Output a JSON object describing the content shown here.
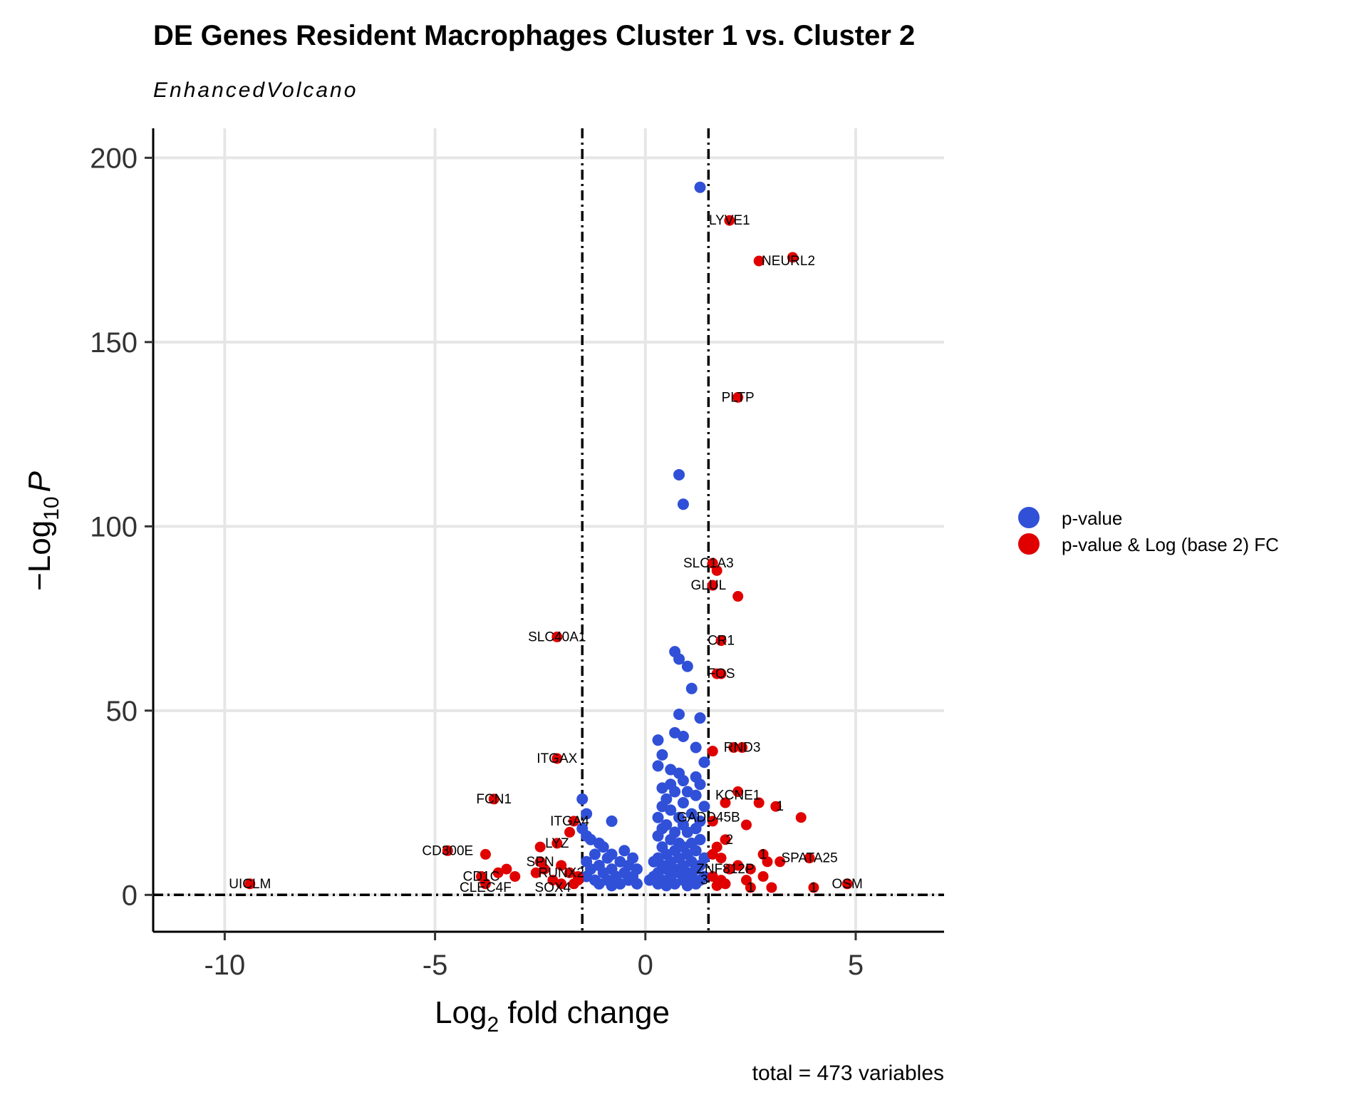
{
  "chart_data": {
    "type": "scatter",
    "title": "DE Genes Resident Macrophages Cluster 1 vs. Cluster 2",
    "subtitle": "EnhancedVolcano",
    "xlabel_main": "Log",
    "xlabel_sub": "2",
    "xlabel_rest": " fold change",
    "ylabel_prefix": "−Log",
    "ylabel_sub": "10",
    "ylabel_italic": "P",
    "caption": "total = 473 variables",
    "xlim": [
      -11.7,
      7.1
    ],
    "ylim": [
      -10,
      208
    ],
    "x_ticks": [
      -10,
      -5,
      0,
      5
    ],
    "x_tick_labels": [
      "-10",
      "-5",
      "0",
      "5"
    ],
    "y_ticks": [
      0,
      50,
      100,
      150,
      200
    ],
    "y_tick_labels": [
      "0",
      "50",
      "100",
      "150",
      "200"
    ],
    "fc_cutoff": 1.5,
    "p_cutoff_line": 0,
    "grid": true,
    "legend_position": "right",
    "colors": {
      "pvalue": "#3050d8",
      "fc": "#e00000",
      "grid": "#e6e6e6",
      "axis": "#000000"
    },
    "legend": [
      {
        "label": "p-value",
        "color": "#3050d8"
      },
      {
        "label": "p-value & Log (base 2) FC",
        "color": "#e00000"
      }
    ],
    "series": [
      {
        "name": "p-value",
        "color": "#3050d8",
        "points": [
          [
            1.3,
            192
          ],
          [
            0.8,
            114
          ],
          [
            0.9,
            106
          ],
          [
            0.7,
            66
          ],
          [
            0.8,
            64
          ],
          [
            1.0,
            62
          ],
          [
            1.1,
            56
          ],
          [
            0.8,
            49
          ],
          [
            1.3,
            48
          ],
          [
            0.7,
            44
          ],
          [
            0.9,
            43
          ],
          [
            0.3,
            42
          ],
          [
            1.2,
            40
          ],
          [
            0.4,
            38
          ],
          [
            1.4,
            36
          ],
          [
            0.3,
            35
          ],
          [
            0.6,
            34
          ],
          [
            0.8,
            33
          ],
          [
            1.2,
            32
          ],
          [
            0.9,
            31
          ],
          [
            0.6,
            30
          ],
          [
            1.3,
            30
          ],
          [
            0.4,
            29
          ],
          [
            0.7,
            28
          ],
          [
            1.0,
            28
          ],
          [
            1.2,
            27
          ],
          [
            -1.5,
            26
          ],
          [
            0.5,
            26
          ],
          [
            0.9,
            25
          ],
          [
            0.4,
            24
          ],
          [
            1.4,
            24
          ],
          [
            0.6,
            23
          ],
          [
            -1.4,
            22
          ],
          [
            1.1,
            22
          ],
          [
            0.3,
            21
          ],
          [
            0.8,
            21
          ],
          [
            -0.8,
            20
          ],
          [
            1.3,
            20
          ],
          [
            0.5,
            19
          ],
          [
            0.9,
            19
          ],
          [
            -1.5,
            18
          ],
          [
            0.4,
            18
          ],
          [
            1.2,
            18
          ],
          [
            0.7,
            17
          ],
          [
            1.0,
            17
          ],
          [
            -1.4,
            16
          ],
          [
            0.3,
            16
          ],
          [
            0.6,
            15
          ],
          [
            1.3,
            15
          ],
          [
            -1.3,
            15
          ],
          [
            -1.1,
            14
          ],
          [
            0.8,
            14
          ],
          [
            1.1,
            14
          ],
          [
            -1.0,
            13
          ],
          [
            0.4,
            13
          ],
          [
            0.9,
            13
          ],
          [
            -0.5,
            12
          ],
          [
            0.7,
            12
          ],
          [
            1.2,
            12
          ],
          [
            -0.8,
            11
          ],
          [
            -1.2,
            11
          ],
          [
            0.5,
            11
          ],
          [
            1.0,
            11
          ],
          [
            -0.3,
            10
          ],
          [
            -0.9,
            10
          ],
          [
            0.3,
            10
          ],
          [
            0.8,
            10
          ],
          [
            1.4,
            10
          ],
          [
            -1.4,
            9
          ],
          [
            -0.6,
            9
          ],
          [
            0.2,
            9
          ],
          [
            0.6,
            9
          ],
          [
            1.1,
            9
          ],
          [
            -1.1,
            8
          ],
          [
            -0.4,
            8
          ],
          [
            0.4,
            8
          ],
          [
            0.9,
            8
          ],
          [
            1.3,
            8
          ],
          [
            -1.3,
            7
          ],
          [
            -0.8,
            7
          ],
          [
            -0.2,
            7
          ],
          [
            0.5,
            7
          ],
          [
            0.7,
            7
          ],
          [
            1.2,
            7
          ],
          [
            -1.0,
            6
          ],
          [
            -0.5,
            6
          ],
          [
            0.3,
            6
          ],
          [
            0.8,
            6
          ],
          [
            1.0,
            6
          ],
          [
            -1.4,
            5
          ],
          [
            -0.7,
            5
          ],
          [
            -0.3,
            5
          ],
          [
            0.2,
            5
          ],
          [
            0.6,
            5
          ],
          [
            1.1,
            5
          ],
          [
            1.4,
            5
          ],
          [
            -1.2,
            4
          ],
          [
            -0.9,
            4
          ],
          [
            -0.4,
            4
          ],
          [
            0.1,
            4
          ],
          [
            0.4,
            4
          ],
          [
            0.9,
            4
          ],
          [
            1.3,
            4
          ],
          [
            -1.1,
            3
          ],
          [
            -0.6,
            3
          ],
          [
            -0.2,
            3
          ],
          [
            0.3,
            3
          ],
          [
            0.7,
            3
          ],
          [
            1.2,
            3
          ],
          [
            -0.8,
            2.5
          ],
          [
            0.5,
            2.5
          ],
          [
            1.0,
            2.5
          ]
        ]
      },
      {
        "name": "p-value & Log (base 2) FC",
        "color": "#e00000",
        "points": [
          [
            2.0,
            183
          ],
          [
            2.7,
            172
          ],
          [
            3.5,
            173
          ],
          [
            2.2,
            135
          ],
          [
            1.7,
            88
          ],
          [
            2.2,
            81
          ],
          [
            1.6,
            90
          ],
          [
            1.6,
            84
          ],
          [
            1.8,
            69
          ],
          [
            1.7,
            60
          ],
          [
            1.8,
            60
          ],
          [
            1.6,
            39
          ],
          [
            2.1,
            40
          ],
          [
            2.3,
            40
          ],
          [
            2.2,
            28
          ],
          [
            1.9,
            25
          ],
          [
            2.7,
            25
          ],
          [
            3.1,
            24
          ],
          [
            3.7,
            21
          ],
          [
            1.6,
            20
          ],
          [
            2.4,
            19
          ],
          [
            1.9,
            15
          ],
          [
            1.7,
            13
          ],
          [
            1.6,
            11
          ],
          [
            1.8,
            10
          ],
          [
            2.8,
            11
          ],
          [
            3.2,
            9
          ],
          [
            2.9,
            9
          ],
          [
            3.9,
            10
          ],
          [
            2.2,
            8
          ],
          [
            2.5,
            7
          ],
          [
            2.0,
            7
          ],
          [
            1.6,
            5
          ],
          [
            1.8,
            4
          ],
          [
            2.4,
            4
          ],
          [
            2.8,
            5
          ],
          [
            1.9,
            3
          ],
          [
            2.5,
            2
          ],
          [
            3.0,
            2
          ],
          [
            4.0,
            2
          ],
          [
            4.8,
            3
          ],
          [
            1.7,
            2.5
          ],
          [
            -2.1,
            70
          ],
          [
            -2.1,
            37
          ],
          [
            -3.6,
            26
          ],
          [
            -1.7,
            20
          ],
          [
            -1.8,
            17
          ],
          [
            -2.1,
            14
          ],
          [
            -2.5,
            13
          ],
          [
            -4.7,
            12
          ],
          [
            -3.8,
            11
          ],
          [
            -2.5,
            9
          ],
          [
            -2.0,
            8
          ],
          [
            -2.4,
            7
          ],
          [
            -3.5,
            6
          ],
          [
            -3.9,
            5
          ],
          [
            -3.1,
            5
          ],
          [
            -1.8,
            6
          ],
          [
            -1.6,
            5
          ],
          [
            -2.2,
            4
          ],
          [
            -3.8,
            3
          ],
          [
            -2.0,
            3
          ],
          [
            -1.7,
            3
          ],
          [
            -9.4,
            3
          ],
          [
            -2.6,
            6
          ],
          [
            -3.3,
            7
          ],
          [
            -1.6,
            4
          ]
        ]
      }
    ],
    "labels": [
      {
        "text": "LYVE1",
        "x": 2.0,
        "y": 183
      },
      {
        "text": "NEURL2",
        "x": 3.4,
        "y": 172
      },
      {
        "text": "PLTP",
        "x": 2.2,
        "y": 135
      },
      {
        "text": "SLC1A3",
        "x": 1.5,
        "y": 90
      },
      {
        "text": "GLUL",
        "x": 1.5,
        "y": 84
      },
      {
        "text": "CR1",
        "x": 1.8,
        "y": 69
      },
      {
        "text": "FOS",
        "x": 1.8,
        "y": 60
      },
      {
        "text": "RND3",
        "x": 2.3,
        "y": 40
      },
      {
        "text": "KCNE1",
        "x": 2.2,
        "y": 27
      },
      {
        "text": "GADD45B",
        "x": 1.5,
        "y": 21
      },
      {
        "text": "SPATA25",
        "x": 3.9,
        "y": 10
      },
      {
        "text": "ZNF812P",
        "x": 1.9,
        "y": 7
      },
      {
        "text": "OSM",
        "x": 4.8,
        "y": 3
      },
      {
        "text": "SLC40A1",
        "x": -2.1,
        "y": 70
      },
      {
        "text": "ITGAX",
        "x": -2.1,
        "y": 37
      },
      {
        "text": "FCN1",
        "x": -3.6,
        "y": 26
      },
      {
        "text": "ITGA4",
        "x": -1.8,
        "y": 20
      },
      {
        "text": "LYZ",
        "x": -2.1,
        "y": 14
      },
      {
        "text": "CD300E",
        "x": -4.7,
        "y": 12
      },
      {
        "text": "SPN",
        "x": -2.5,
        "y": 9
      },
      {
        "text": "CD1C",
        "x": -3.9,
        "y": 5
      },
      {
        "text": "RUNX2",
        "x": -2.0,
        "y": 6
      },
      {
        "text": "CLEC4F",
        "x": -3.8,
        "y": 2
      },
      {
        "text": "SOX4",
        "x": -2.2,
        "y": 2
      },
      {
        "text": "UICLM",
        "x": -9.4,
        "y": 3
      },
      {
        "text": "1",
        "x": 3.2,
        "y": 24
      },
      {
        "text": "2",
        "x": 2.0,
        "y": 15
      },
      {
        "text": "1",
        "x": 2.8,
        "y": 11
      },
      {
        "text": "3",
        "x": 1.4,
        "y": 4
      },
      {
        "text": "1",
        "x": 4.0,
        "y": 2
      },
      {
        "text": "1",
        "x": 2.5,
        "y": 2
      }
    ]
  }
}
